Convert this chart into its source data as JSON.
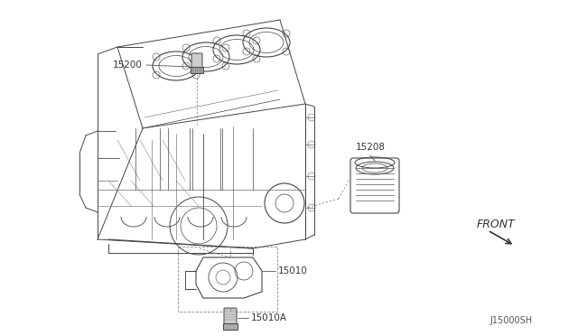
{
  "bg_color": "#ffffff",
  "line_color": "#444444",
  "label_color": "#333333",
  "label_15200": "15200",
  "label_15208": "15208",
  "label_15010": "15010",
  "label_15010A": "15010A",
  "front_label": "FRONT",
  "footer": "J15000SH",
  "lw_main": 0.7,
  "lw_detail": 0.5,
  "lw_dashed": 0.5,
  "font_size_label": 7.5,
  "font_size_footer": 7
}
